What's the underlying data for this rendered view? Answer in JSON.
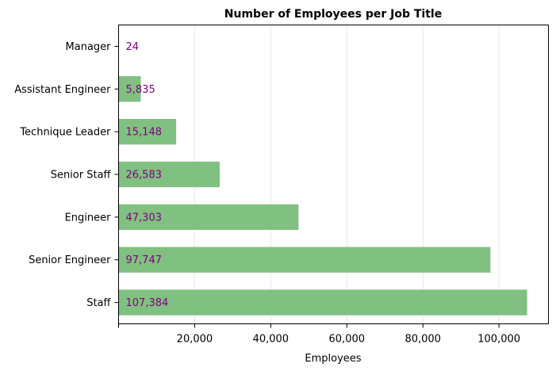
{
  "chart_data": {
    "type": "bar",
    "orientation": "horizontal",
    "title": "Number of Employees per Job Title",
    "xlabel": "Employees",
    "ylabel": "",
    "categories": [
      "Manager",
      "Assistant Engineer",
      "Technique Leader",
      "Senior Staff",
      "Engineer",
      "Senior Engineer",
      "Staff"
    ],
    "values": [
      24,
      5835,
      15148,
      26583,
      47303,
      97747,
      107384
    ],
    "data_labels": [
      "24",
      "5,835",
      "15,148",
      "26,583",
      "47,303",
      "97,747",
      "107,384"
    ],
    "x_ticks": [
      0,
      20000,
      40000,
      60000,
      80000,
      100000
    ],
    "x_tick_labels": [
      "",
      "20,000",
      "40,000",
      "60,000",
      "80,000",
      "100,000"
    ],
    "xlim": [
      0,
      113000
    ],
    "grid": "vertical",
    "colors": {
      "bar": "#80c080",
      "data_label": "#800080",
      "grid": "#e6e6e6",
      "axis": "#000000"
    }
  }
}
